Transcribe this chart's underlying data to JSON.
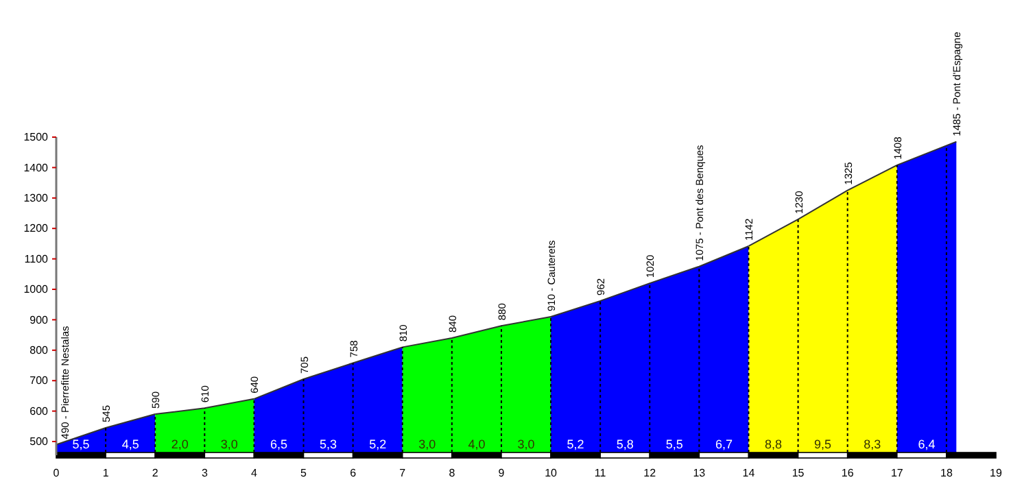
{
  "chart_data": {
    "type": "area",
    "series": [
      {
        "color": "#0000ff",
        "x": [
          0,
          1,
          2
        ],
        "values": [
          490,
          545,
          590
        ],
        "value_labels": [
          "490 - Pierrefitte Nestalas",
          "545",
          "590"
        ]
      },
      {
        "color": "#00ff00",
        "x": [
          2,
          3,
          4
        ],
        "values": [
          590,
          610,
          640
        ],
        "value_labels": [
          null,
          "610",
          "640"
        ]
      },
      {
        "color": "#0000ff",
        "x": [
          4,
          5,
          6,
          7
        ],
        "values": [
          640,
          705,
          758,
          810
        ],
        "value_labels": [
          null,
          "705",
          "758",
          "810"
        ]
      },
      {
        "color": "#00ff00",
        "x": [
          7,
          8,
          9,
          10
        ],
        "values": [
          810,
          840,
          880,
          910
        ],
        "value_labels": [
          null,
          "840",
          "880",
          "910 - Cauterets"
        ]
      },
      {
        "color": "#0000ff",
        "x": [
          10,
          11,
          12,
          13,
          14
        ],
        "values": [
          910,
          962,
          1020,
          1075,
          1142
        ],
        "value_labels": [
          null,
          "962",
          "1020",
          "1075 - Pont des Benques",
          "1142"
        ]
      },
      {
        "color": "#ffff00",
        "x": [
          14,
          15,
          16,
          17
        ],
        "values": [
          1142,
          1230,
          1325,
          1408
        ],
        "value_labels": [
          null,
          "1230",
          "1325",
          "1408"
        ]
      },
      {
        "color": "#0000ff",
        "x": [
          17,
          18.2
        ],
        "values": [
          1408,
          1485
        ],
        "value_labels": [
          null,
          "1485 - Pont d'Espagne"
        ]
      }
    ],
    "annotations": [
      "5,5",
      "4,5",
      "2,0",
      "3,0",
      "6,5",
      "5,3",
      "5,2",
      "3,0",
      "4,0",
      "3,0",
      "5,2",
      "5,8",
      "5,5",
      "6,7",
      "8,8",
      "9,5",
      "8,3",
      "6,4"
    ],
    "xlim": [
      0,
      19
    ],
    "xticks": [
      0,
      1,
      2,
      3,
      4,
      5,
      6,
      7,
      8,
      9,
      10,
      11,
      12,
      13,
      14,
      15,
      16,
      17,
      18,
      19
    ],
    "ylim": [
      455,
      1500
    ],
    "yticks": [
      500,
      600,
      700,
      800,
      900,
      1000,
      1100,
      1200,
      1300,
      1400,
      1500
    ],
    "grid": "x"
  }
}
